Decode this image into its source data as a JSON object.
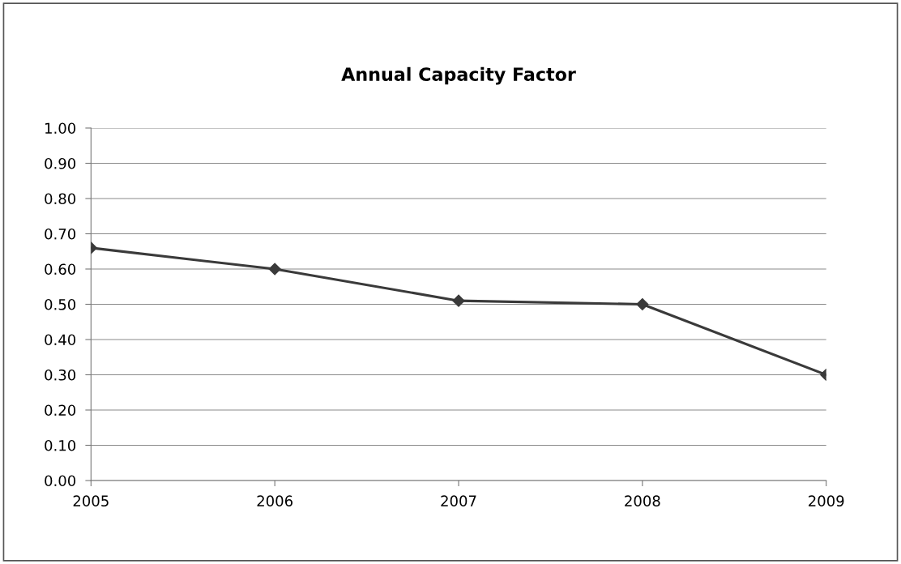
{
  "chart_data": {
    "type": "line",
    "title": "Annual Capacity Factor",
    "categories": [
      "2005",
      "2006",
      "2007",
      "2008",
      "2009"
    ],
    "series": [
      {
        "color": "#3a3a3a",
        "values": [
          0.66,
          0.6,
          0.51,
          0.5,
          0.3
        ]
      }
    ],
    "ylim": [
      0,
      1.0
    ],
    "yticks": [
      {
        "value": 0,
        "label": "0.00"
      },
      {
        "value": 0.1,
        "label": "0.10"
      },
      {
        "value": 0.2,
        "label": "0.20"
      },
      {
        "value": 0.3,
        "label": "0.30"
      },
      {
        "value": 0.4,
        "label": "0.40"
      },
      {
        "value": 0.5,
        "label": "0.50"
      },
      {
        "value": 0.6,
        "label": "0.60"
      },
      {
        "value": 0.7,
        "label": "0.70"
      },
      {
        "value": 0.8,
        "label": "0.80"
      },
      {
        "value": 0.9,
        "label": "0.90"
      },
      {
        "value": 1.0,
        "label": "1.00"
      }
    ],
    "grid": "y",
    "marker": "diamond",
    "line_style": "solid"
  }
}
